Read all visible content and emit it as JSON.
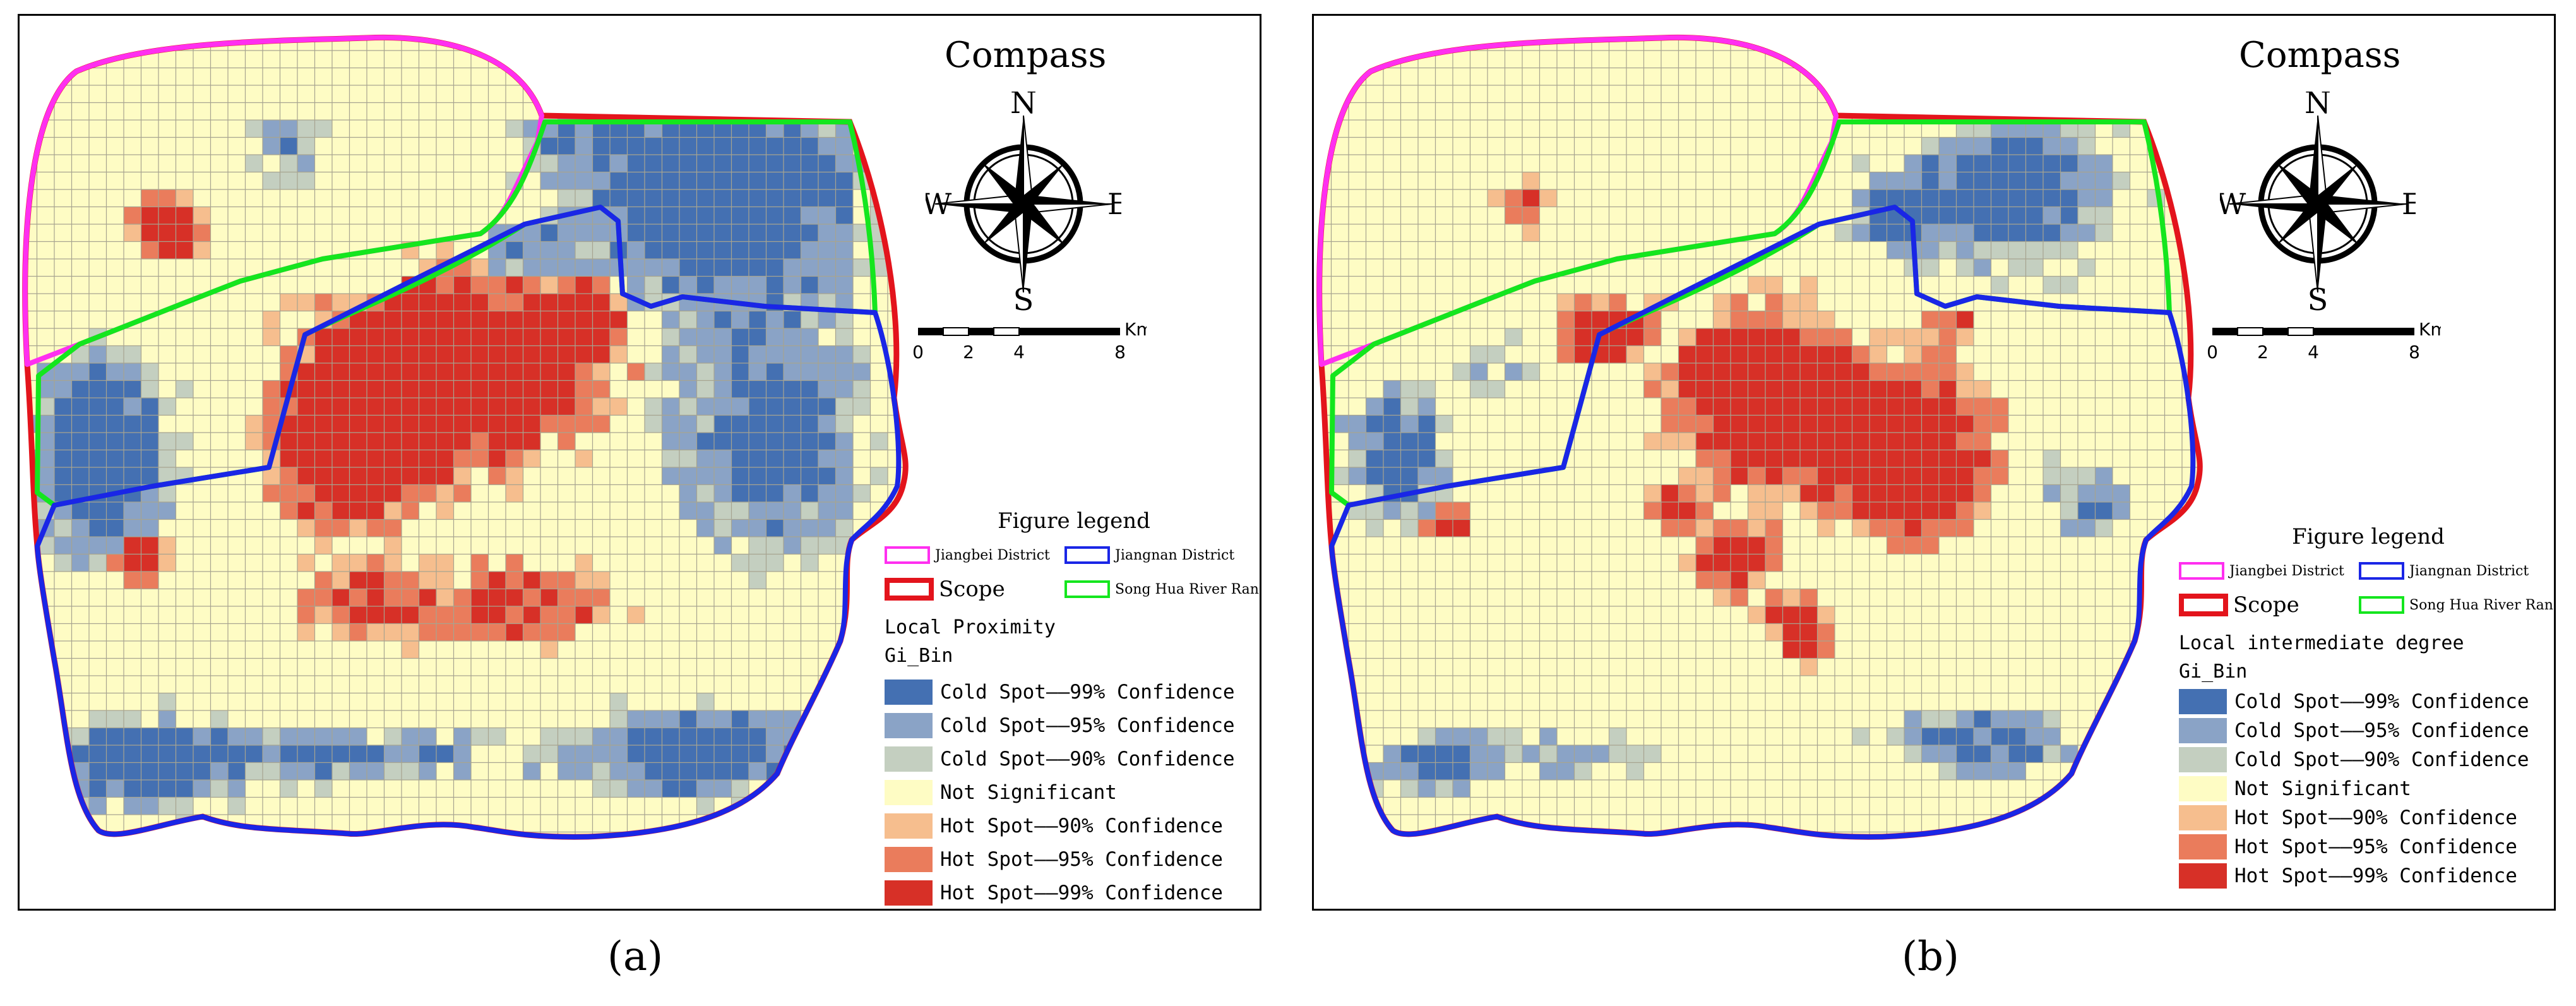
{
  "colors": {
    "cold99": "#4470b2",
    "cold95": "#8aa3c6",
    "cold90": "#c4cfc0",
    "not_sig": "#fefcc4",
    "hot90": "#f6be8e",
    "hot95": "#ea7c5c",
    "hot99": "#d73027",
    "grid_line": "#a7a490",
    "jiangbei": "#ff2ff0",
    "jiangnan": "#1a26e6",
    "scope": "#e3141c",
    "songhua": "#14e61e"
  },
  "maps": [
    {
      "id": "a",
      "caption": "(a)",
      "compass": {
        "title": "Compass",
        "north": "N",
        "south": "S",
        "east": "E",
        "west": "W"
      },
      "scale": {
        "ticks": [
          "0",
          "2",
          "4",
          "8"
        ],
        "unit": "Km"
      },
      "legend": {
        "title": "Figure legend",
        "boundaries": [
          {
            "label": "Jiangbei District",
            "color": "#ff2ff0"
          },
          {
            "label": "Jiangnan District",
            "color": "#1a26e6"
          },
          {
            "label": "Scope",
            "color": "#e3141c"
          },
          {
            "label": "Song Hua River Range",
            "color": "#14e61e"
          }
        ],
        "metric": "Local Proximity",
        "field": "Gi_Bin",
        "bins": [
          {
            "label": "Cold Spot——99% Confidence",
            "color": "#4470b2"
          },
          {
            "label": "Cold Spot——95% Confidence",
            "color": "#8aa3c6"
          },
          {
            "label": "Cold Spot——90% Confidence",
            "color": "#c4cfc0"
          },
          {
            "label": "Not Significant",
            "color": "#fefcc4"
          },
          {
            "label": "Hot Spot——90% Confidence",
            "color": "#f6be8e"
          },
          {
            "label": "Hot Spot——95% Confidence",
            "color": "#ea7c5c"
          },
          {
            "label": "Hot Spot——99% Confidence",
            "color": "#d73027"
          }
        ]
      }
    },
    {
      "id": "b",
      "caption": "(b)",
      "compass": {
        "title": "Compass",
        "north": "N",
        "south": "S",
        "east": "E",
        "west": "W"
      },
      "scale": {
        "ticks": [
          "0",
          "2",
          "4",
          "8"
        ],
        "unit": "Km"
      },
      "legend": {
        "title": "Figure legend",
        "boundaries": [
          {
            "label": "Jiangbei District",
            "color": "#ff2ff0"
          },
          {
            "label": "Jiangnan District",
            "color": "#1a26e6"
          },
          {
            "label": "Scope",
            "color": "#e3141c"
          },
          {
            "label": "Song Hua River Range",
            "color": "#14e61e"
          }
        ],
        "metric": "Local intermediate degree",
        "field": "Gi_Bin",
        "bins": [
          {
            "label": "Cold Spot——99% Confidence",
            "color": "#4470b2"
          },
          {
            "label": "Cold Spot——95% Confidence",
            "color": "#8aa3c6"
          },
          {
            "label": "Cold Spot——90% Confidence",
            "color": "#c4cfc0"
          },
          {
            "label": "Not Significant",
            "color": "#fefcc4"
          },
          {
            "label": "Hot Spot——90% Confidence",
            "color": "#f6be8e"
          },
          {
            "label": "Hot Spot——95% Confidence",
            "color": "#ea7c5c"
          },
          {
            "label": "Hot Spot——99% Confidence",
            "color": "#d73027"
          }
        ]
      }
    }
  ]
}
